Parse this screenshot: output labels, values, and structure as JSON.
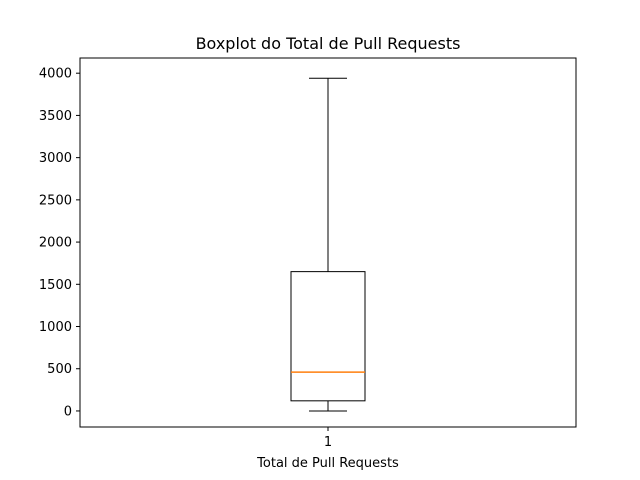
{
  "chart_data": {
    "type": "box",
    "title": "Boxplot do Total de Pull Requests",
    "xlabel": "Total de Pull Requests",
    "ylabel": "",
    "categories": [
      "1"
    ],
    "ylim": [
      -190,
      4180
    ],
    "yticks": [
      0,
      500,
      1000,
      1500,
      2000,
      2500,
      3000,
      3500,
      4000
    ],
    "ytick_labels": [
      "0",
      "500",
      "1000",
      "1500",
      "2000",
      "2500",
      "3000",
      "3500",
      "4000"
    ],
    "boxes": [
      {
        "label": "1",
        "whisker_low": 0,
        "q1": 120,
        "median": 460,
        "q3": 1650,
        "whisker_high": 3940
      }
    ],
    "colors": {
      "box": "#000000",
      "median": "#ff7f0e",
      "axes": "#000000"
    }
  }
}
